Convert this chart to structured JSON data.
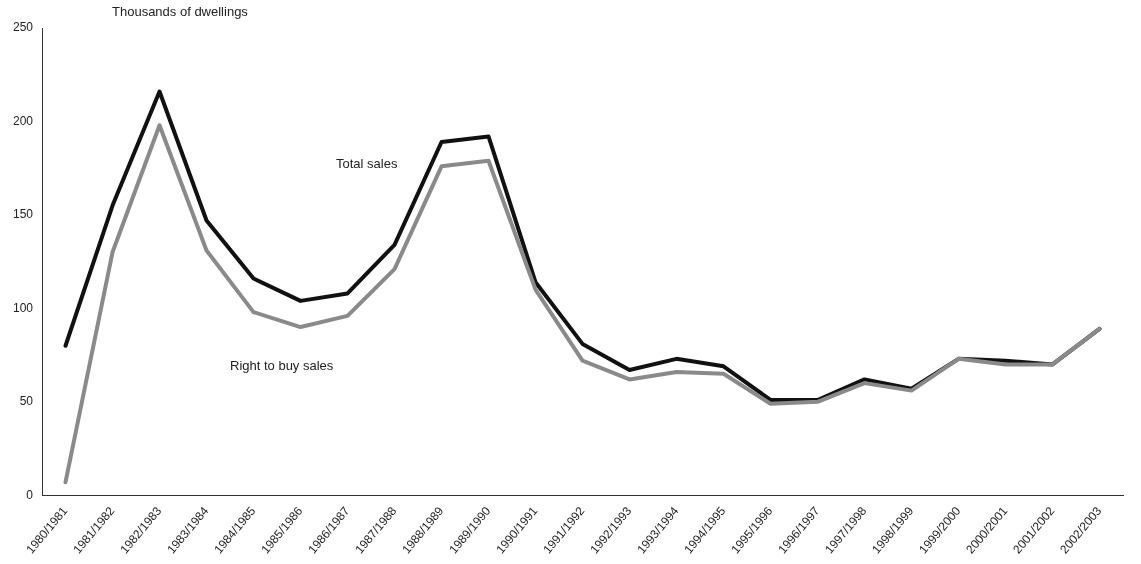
{
  "chart_data": {
    "type": "line",
    "ylabel": "Thousands of dwellings",
    "categories": [
      "1980/1981",
      "1981/1982",
      "1982/1983",
      "1983/1984",
      "1984/1985",
      "1985/1986",
      "1986/1987",
      "1987/1988",
      "1988/1989",
      "1989/1990",
      "1990/1991",
      "1991/1992",
      "1992/1993",
      "1993/1994",
      "1994/1995",
      "1995/1996",
      "1996/1997",
      "1997/1998",
      "1998/1999",
      "1999/2000",
      "2000/2001",
      "2001/2002",
      "2002/2003"
    ],
    "series": [
      {
        "name": "Right to buy sales",
        "color": "#8a8a8a",
        "values": [
          7,
          130,
          198,
          131,
          98,
          90,
          96,
          121,
          176,
          179,
          110,
          72,
          62,
          66,
          65,
          49,
          50,
          60,
          56,
          73,
          70,
          70,
          89
        ]
      },
      {
        "name": "Total sales",
        "color": "#111111",
        "values": [
          80,
          155,
          216,
          147,
          116,
          104,
          108,
          134,
          189,
          192,
          114,
          81,
          67,
          73,
          69,
          51,
          51,
          62,
          57,
          73,
          72,
          70,
          89
        ]
      }
    ],
    "ylim": [
      0,
      250
    ],
    "yticks": [
      0,
      50,
      100,
      150,
      200,
      250
    ],
    "grid": false,
    "legend": false,
    "marker": "none",
    "line_style": "solid"
  }
}
